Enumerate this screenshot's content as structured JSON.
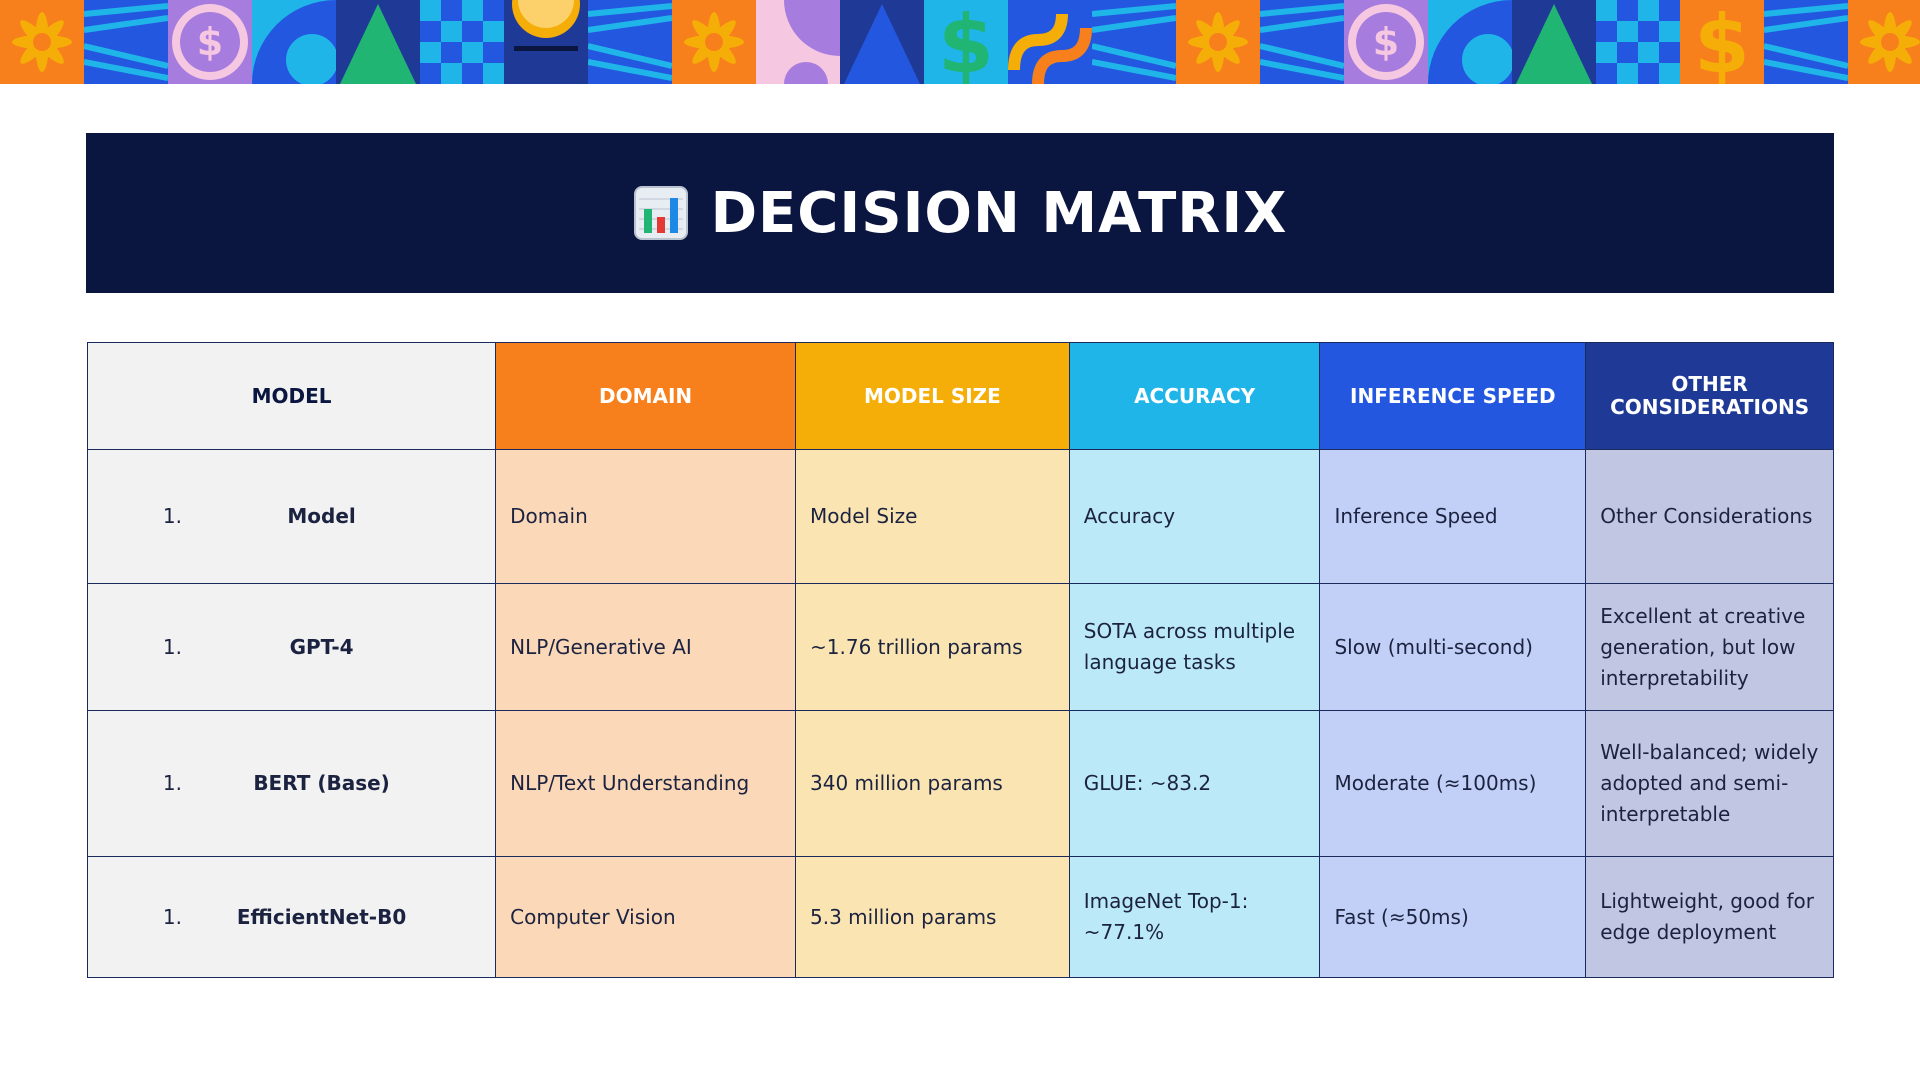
{
  "banner": {
    "tiles": [
      "flower",
      "stripes",
      "dollar-coin",
      "quarter-circle",
      "triangle",
      "checker",
      "sun",
      "stripes",
      "flower",
      "quarter-circle",
      "triangle",
      "dollar-sign",
      "chain",
      "stripes",
      "flower",
      "stripes",
      "dollar-coin",
      "quarter-circle",
      "triangle",
      "checker",
      "dollar-sign",
      "stripes",
      "flower"
    ]
  },
  "header": {
    "icon": "bar-chart-icon",
    "title": "DECISION MATRIX"
  },
  "table": {
    "columns": [
      {
        "label": "MODEL",
        "color": "#f2f2f2"
      },
      {
        "label": "DOMAIN",
        "color": "#f7801c"
      },
      {
        "label": "MODEL SIZE",
        "color": "#f5ae07"
      },
      {
        "label": "ACCURACY",
        "color": "#1fb5e8"
      },
      {
        "label": "INFERENCE SPEED",
        "color": "#2457e0"
      },
      {
        "label": "OTHER CONSIDERATIONS",
        "color": "#1f3a96"
      }
    ],
    "rows": [
      {
        "num": "1.",
        "model": "Model",
        "domain": "Domain",
        "size": "Model Size",
        "accuracy": "Accuracy",
        "speed": "Inference Speed",
        "other": "Other Considerations"
      },
      {
        "num": "1.",
        "model": "GPT-4",
        "domain": "NLP/Generative AI",
        "size": "~1.76 trillion params",
        "accuracy": "SOTA across multiple language tasks",
        "speed": "Slow (multi-second)",
        "other": "Excellent at creative generation, but low interpretability"
      },
      {
        "num": "1.",
        "model": "BERT (Base)",
        "domain": "NLP/Text Understanding",
        "size": "340 million params",
        "accuracy": "GLUE: ~83.2",
        "speed": "Moderate (≈100ms)",
        "other": "Well-balanced; widely adopted and semi-interpretable"
      },
      {
        "num": "1.",
        "model": "EfficientNet-B0",
        "domain": "Computer Vision",
        "size": "5.3 million params",
        "accuracy": "ImageNet Top-1: ~77.1%",
        "speed": "Fast (≈50ms)",
        "other": "Lightweight, good for edge deployment"
      }
    ]
  }
}
